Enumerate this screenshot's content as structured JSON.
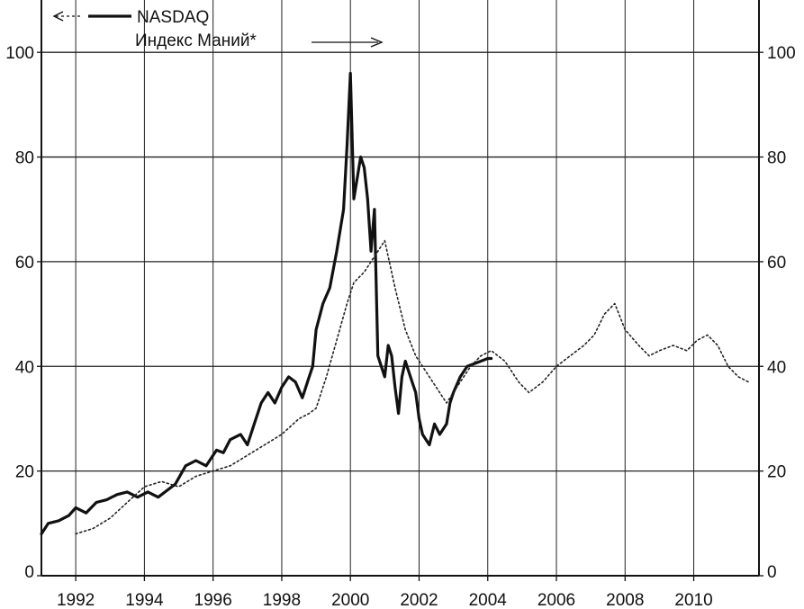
{
  "chart_data": {
    "type": "line",
    "title": "",
    "xlabel": "",
    "ylabel": "",
    "xlim": [
      1991.0,
      2011.9
    ],
    "ylim": [
      0,
      110
    ],
    "y_right_axis": true,
    "x_ticks": [
      1992,
      1994,
      1996,
      1998,
      2000,
      2002,
      2004,
      2006,
      2008,
      2010
    ],
    "x_tick_labels": [
      "1992",
      "1994",
      "1996",
      "1998",
      "2000",
      "2002",
      "2004",
      "2006",
      "2008",
      "2010"
    ],
    "y_ticks": [
      0,
      20,
      40,
      60,
      80,
      100
    ],
    "y_tick_labels": [
      "0",
      "20",
      "40",
      "60",
      "80",
      "100"
    ],
    "grid": true,
    "legend_position": "top-left",
    "series": [
      {
        "name": "NASDAQ",
        "axis": "left",
        "style": "solid-bold",
        "color": "#111111",
        "x": [
          1991.0,
          1991.2,
          1991.5,
          1991.8,
          1992.0,
          1992.3,
          1992.6,
          1992.9,
          1993.2,
          1993.5,
          1993.8,
          1994.1,
          1994.4,
          1994.6,
          1994.9,
          1995.2,
          1995.5,
          1995.8,
          1996.1,
          1996.3,
          1996.5,
          1996.8,
          1997.0,
          1997.2,
          1997.4,
          1997.6,
          1997.8,
          1998.0,
          1998.2,
          1998.4,
          1998.6,
          1998.8,
          1998.9,
          1999.0,
          1999.2,
          1999.4,
          1999.6,
          1999.8,
          1999.9,
          2000.0,
          2000.1,
          2000.2,
          2000.3,
          2000.4,
          2000.5,
          2000.6,
          2000.7,
          2000.8,
          2000.9,
          2001.0,
          2001.1,
          2001.2,
          2001.3,
          2001.4,
          2001.5,
          2001.6,
          2001.7,
          2001.8,
          2001.9,
          2002.0,
          2002.1,
          2002.2,
          2002.3,
          2002.45,
          2002.6,
          2002.8,
          2002.9,
          2003.0,
          2003.2,
          2003.4,
          2003.6,
          2003.8,
          2004.0,
          2004.1
        ],
        "values": [
          8,
          10,
          10.5,
          11.5,
          13,
          12,
          14,
          14.5,
          15.5,
          16,
          15,
          16,
          15,
          16,
          17.5,
          21,
          22,
          21,
          24,
          23.5,
          26,
          27,
          25,
          29,
          33,
          35,
          33,
          36,
          38,
          37,
          34,
          38,
          40,
          47,
          52,
          55,
          62,
          70,
          82,
          96,
          72,
          76,
          80,
          78,
          72,
          62,
          70,
          42,
          40,
          38,
          44,
          42,
          36,
          31,
          38,
          41,
          39,
          37,
          35,
          30,
          27,
          26,
          25,
          29,
          27,
          29,
          33,
          35,
          38,
          40,
          40.5,
          41,
          41.5,
          41.5
        ]
      },
      {
        "name": "Индекс Маний*",
        "axis": "right",
        "style": "dotted",
        "color": "#222222",
        "x": [
          1992.0,
          1992.5,
          1993.0,
          1993.5,
          1994.0,
          1994.5,
          1995.0,
          1995.5,
          1996.0,
          1996.5,
          1997.0,
          1997.5,
          1998.0,
          1998.5,
          1998.8,
          1999.0,
          1999.3,
          1999.6,
          1999.9,
          2000.1,
          2000.4,
          2000.6,
          2000.8,
          2001.0,
          2001.3,
          2001.6,
          2001.9,
          2002.2,
          2002.5,
          2002.8,
          2003.1,
          2003.5,
          2003.8,
          2004.1,
          2004.5,
          2004.9,
          2005.2,
          2005.6,
          2006.0,
          2006.4,
          2006.8,
          2007.1,
          2007.4,
          2007.7,
          2008.0,
          2008.4,
          2008.7,
          2009.0,
          2009.4,
          2009.8,
          2010.1,
          2010.4,
          2010.7,
          2011.0,
          2011.3,
          2011.6
        ],
        "values": [
          8,
          9,
          11,
          14,
          17,
          18,
          17,
          19,
          20,
          21,
          23,
          25,
          27,
          30,
          31,
          32,
          38,
          45,
          52,
          56,
          58,
          60,
          62,
          64,
          55,
          47,
          42,
          39,
          36,
          33,
          36,
          40,
          42,
          43,
          41,
          37,
          35,
          37,
          40,
          42,
          44,
          46,
          50,
          52,
          47,
          44,
          42,
          43,
          44,
          43,
          45,
          46,
          44,
          40,
          38,
          37
        ]
      }
    ]
  }
}
